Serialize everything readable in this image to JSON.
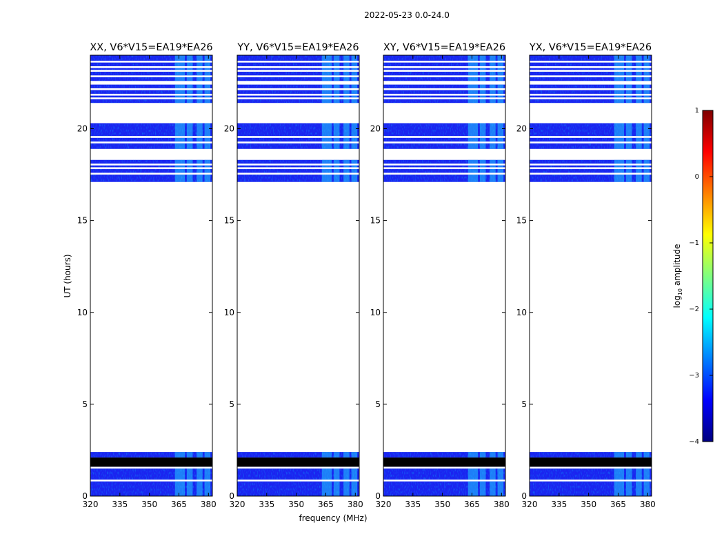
{
  "chart_data": {
    "type": "heatmap",
    "title": "2022-05-23 0.0-24.0",
    "xlabel": "frequency (MHz)",
    "ylabel": "UT (hours)",
    "xlim": [
      320,
      382
    ],
    "ylim": [
      0,
      24
    ],
    "xticks": [
      320,
      335,
      350,
      365,
      380
    ],
    "yticks": [
      0,
      5,
      10,
      15,
      20
    ],
    "panels": [
      {
        "title": "XX, V6*V15=EA19*EA26"
      },
      {
        "title": "YY, V6*V15=EA19*EA26"
      },
      {
        "title": "XY, V6*V15=EA19*EA26"
      },
      {
        "title": "YX, V6*V15=EA19*EA26"
      }
    ],
    "colorbar": {
      "label_main": "log",
      "label_sub": "10",
      "label_tail": " amplitude",
      "range": [
        -4,
        1
      ],
      "ticks": [
        1,
        0,
        -1,
        -2,
        -3,
        -4
      ],
      "colormap": "jet"
    },
    "data_blocks_ut": [
      [
        0.0,
        0.8
      ],
      [
        0.9,
        1.5
      ],
      [
        1.6,
        2.0
      ],
      [
        2.1,
        2.4
      ],
      [
        17.1,
        17.5
      ],
      [
        17.6,
        17.8
      ],
      [
        17.9,
        18.0
      ],
      [
        18.1,
        18.3
      ],
      [
        18.9,
        19.2
      ],
      [
        19.3,
        19.5
      ],
      [
        19.6,
        20.3
      ],
      [
        21.4,
        21.6
      ],
      [
        21.7,
        21.8
      ],
      [
        21.9,
        22.1
      ],
      [
        22.2,
        22.4
      ],
      [
        22.6,
        22.8
      ],
      [
        22.9,
        23.1
      ],
      [
        23.2,
        23.3
      ],
      [
        23.4,
        23.6
      ],
      [
        23.7,
        24.0
      ]
    ],
    "flagged_blocks_ut": [
      [
        1.6,
        2.1
      ]
    ],
    "bright_bands_mhz": [
      [
        363,
        368
      ],
      [
        369,
        372
      ],
      [
        374,
        377
      ],
      [
        378,
        381
      ]
    ]
  }
}
